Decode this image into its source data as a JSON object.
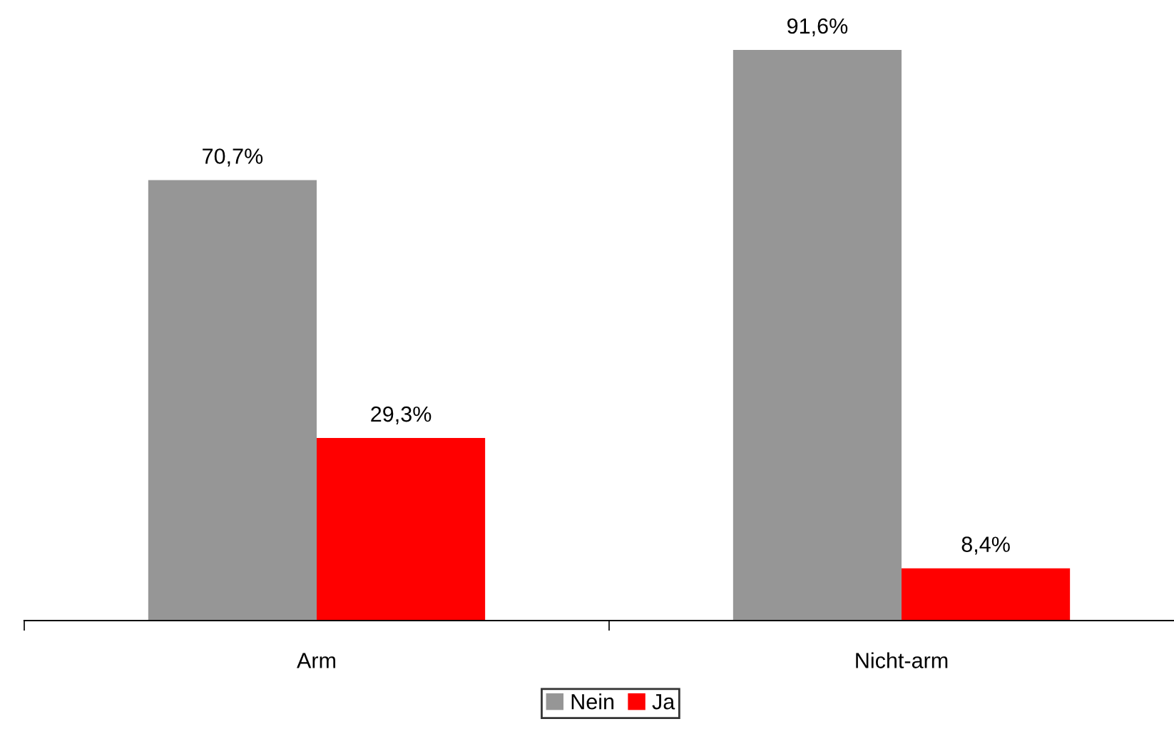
{
  "chart_data": {
    "type": "bar",
    "categories": [
      "Arm",
      "Nicht-arm"
    ],
    "series": [
      {
        "name": "Nein",
        "color": "#969696",
        "values": [
          70.7,
          91.6
        ],
        "value_labels": [
          "70,7%",
          "91,6%"
        ]
      },
      {
        "name": "Ja",
        "color": "#ff0000",
        "values": [
          29.3,
          8.4
        ],
        "value_labels": [
          "29,3%",
          "8,4%"
        ]
      }
    ],
    "legend": "bottom",
    "grid": false
  }
}
